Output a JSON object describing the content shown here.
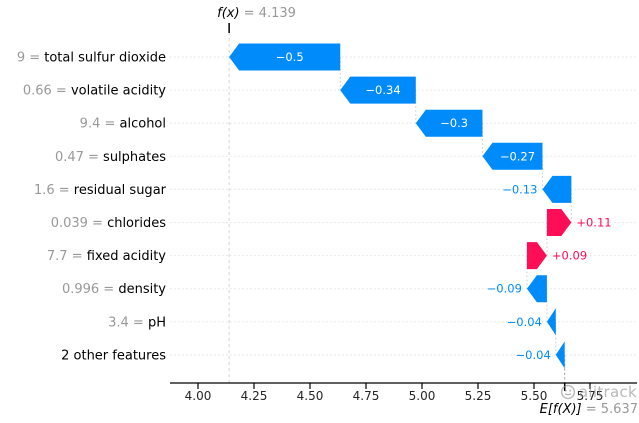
{
  "chart_data": {
    "type": "waterfall",
    "fx": {
      "label": "f(x)",
      "value": 4.139,
      "value_label": "= 4.139"
    },
    "expected_value": {
      "label": "E[f(X)]",
      "value": 5.637,
      "value_label": "= 5.637"
    },
    "x_axis": {
      "tick_labels": [
        "4.00",
        "4.25",
        "4.50",
        "4.75",
        "5.00",
        "5.25",
        "5.50",
        "5.75"
      ],
      "tick_values": [
        4.0,
        4.25,
        4.5,
        4.75,
        5.0,
        5.25,
        5.5,
        5.75
      ],
      "grid": "dotted-horizontal-rows"
    },
    "rows": [
      {
        "feature": "total sulfur dioxide",
        "prefix_label": "9 = ",
        "shap": -0.5,
        "shap_label": "−0.5"
      },
      {
        "feature": "volatile acidity",
        "prefix_label": "0.66 = ",
        "shap": -0.34,
        "shap_label": "−0.34"
      },
      {
        "feature": "alcohol",
        "prefix_label": "9.4 = ",
        "shap": -0.3,
        "shap_label": "−0.3"
      },
      {
        "feature": "sulphates",
        "prefix_label": "0.47 = ",
        "shap": -0.27,
        "shap_label": "−0.27"
      },
      {
        "feature": "residual sugar",
        "prefix_label": "1.6 = ",
        "shap": -0.13,
        "shap_label": "−0.13"
      },
      {
        "feature": "chlorides",
        "prefix_label": "0.039 = ",
        "shap": 0.11,
        "shap_label": "+0.11"
      },
      {
        "feature": "fixed acidity",
        "prefix_label": "7.7 = ",
        "shap": 0.09,
        "shap_label": "+0.09"
      },
      {
        "feature": "density",
        "prefix_label": "0.996 = ",
        "shap": -0.09,
        "shap_label": "−0.09"
      },
      {
        "feature": "pH",
        "prefix_label": "3.4 = ",
        "shap": -0.04,
        "shap_label": "−0.04"
      },
      {
        "feature": "2 other features",
        "prefix_label": "",
        "shap": -0.04,
        "shap_label": "−0.04"
      }
    ],
    "colors": {
      "negative_bar": "#008bfb",
      "positive_bar": "#ff0d57",
      "muted_text": "#999999",
      "tick_text": "#262626"
    }
  },
  "watermark": {
    "text": "alitrack",
    "icon": "smiley-circle-logo"
  }
}
